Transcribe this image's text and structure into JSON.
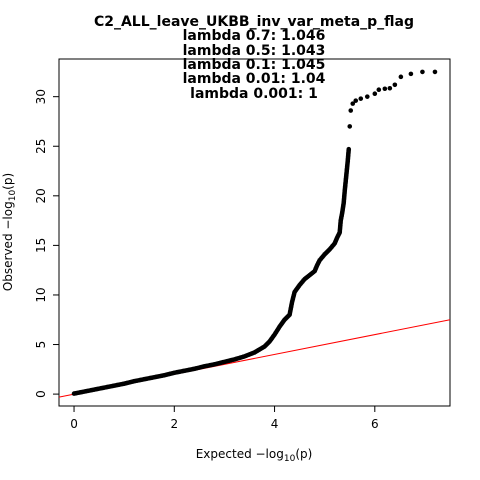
{
  "chart_data": {
    "type": "scatter",
    "title_lines": [
      "C2_ALL_leave_UKBB_inv_var_meta_p_flag",
      "lambda 0.7: 1.046",
      "lambda 0.5: 1.043",
      "lambda 0.1: 1.045",
      "lambda 0.01: 1.04",
      "lambda 0.001: 1"
    ],
    "xlabel": {
      "prefix": "Expected  −log",
      "sub": "10",
      "suffix": "(p)"
    },
    "ylabel": {
      "prefix": "Observed  −log",
      "sub": "10",
      "suffix": "(p)"
    },
    "xlim": [
      -0.3,
      7.5
    ],
    "ylim": [
      -1.2,
      33.8
    ],
    "xticks": [
      0,
      2,
      4,
      6
    ],
    "yticks": [
      0,
      5,
      10,
      15,
      20,
      25,
      30
    ],
    "xtick_labels": [
      "0",
      "2",
      "4",
      "6"
    ],
    "ytick_labels": [
      "0",
      "5",
      "10",
      "15",
      "20",
      "25",
      "30"
    ],
    "reference_line": {
      "slope": 1,
      "intercept": 0,
      "color": "#ff0000"
    },
    "point_color": "#000000",
    "points": [
      [
        0.0,
        0.05
      ],
      [
        0.2,
        0.25
      ],
      [
        0.4,
        0.45
      ],
      [
        0.6,
        0.65
      ],
      [
        0.8,
        0.85
      ],
      [
        1.0,
        1.05
      ],
      [
        1.2,
        1.3
      ],
      [
        1.4,
        1.5
      ],
      [
        1.6,
        1.7
      ],
      [
        1.8,
        1.9
      ],
      [
        2.0,
        2.15
      ],
      [
        2.2,
        2.35
      ],
      [
        2.4,
        2.55
      ],
      [
        2.6,
        2.8
      ],
      [
        2.8,
        3.0
      ],
      [
        3.0,
        3.25
      ],
      [
        3.2,
        3.5
      ],
      [
        3.4,
        3.8
      ],
      [
        3.6,
        4.2
      ],
      [
        3.8,
        4.8
      ],
      [
        3.9,
        5.3
      ],
      [
        4.0,
        6.0
      ],
      [
        4.1,
        6.8
      ],
      [
        4.2,
        7.5
      ],
      [
        4.3,
        8.0
      ],
      [
        4.35,
        9.3
      ],
      [
        4.4,
        10.3
      ],
      [
        4.5,
        11.0
      ],
      [
        4.6,
        11.6
      ],
      [
        4.7,
        12.0
      ],
      [
        4.8,
        12.4
      ],
      [
        4.85,
        13.0
      ],
      [
        4.9,
        13.5
      ],
      [
        5.0,
        14.1
      ],
      [
        5.1,
        14.6
      ],
      [
        5.2,
        15.2
      ],
      [
        5.25,
        15.8
      ],
      [
        5.3,
        16.3
      ],
      [
        5.32,
        17.5
      ],
      [
        5.35,
        18.3
      ],
      [
        5.38,
        19.3
      ],
      [
        5.4,
        20.5
      ],
      [
        5.42,
        21.5
      ],
      [
        5.44,
        22.5
      ],
      [
        5.46,
        23.5
      ],
      [
        5.48,
        24.7
      ],
      [
        5.5,
        27.0
      ],
      [
        5.52,
        28.6
      ],
      [
        5.56,
        29.3
      ],
      [
        5.62,
        29.6
      ],
      [
        5.72,
        29.8
      ],
      [
        5.85,
        30.0
      ],
      [
        6.0,
        30.3
      ],
      [
        6.08,
        30.7
      ],
      [
        6.2,
        30.8
      ],
      [
        6.3,
        30.85
      ],
      [
        6.4,
        31.2
      ],
      [
        6.52,
        32.0
      ],
      [
        6.72,
        32.3
      ],
      [
        6.95,
        32.5
      ],
      [
        7.2,
        32.5
      ]
    ]
  }
}
